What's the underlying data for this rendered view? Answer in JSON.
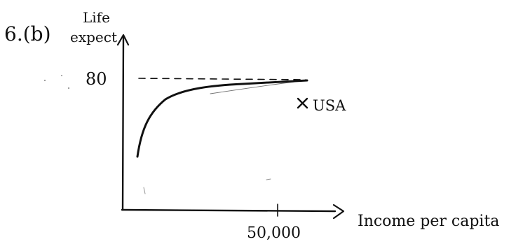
{
  "problem_label": "6.(b)",
  "y_axis_label": [
    "Life",
    "expect"
  ],
  "x_axis_label": "Income per capita",
  "y_reference_value": "80",
  "x_reference_value": "50,000",
  "point_label": "USA",
  "colors": {
    "ink": "#111111",
    "background": "#ffffff"
  }
}
